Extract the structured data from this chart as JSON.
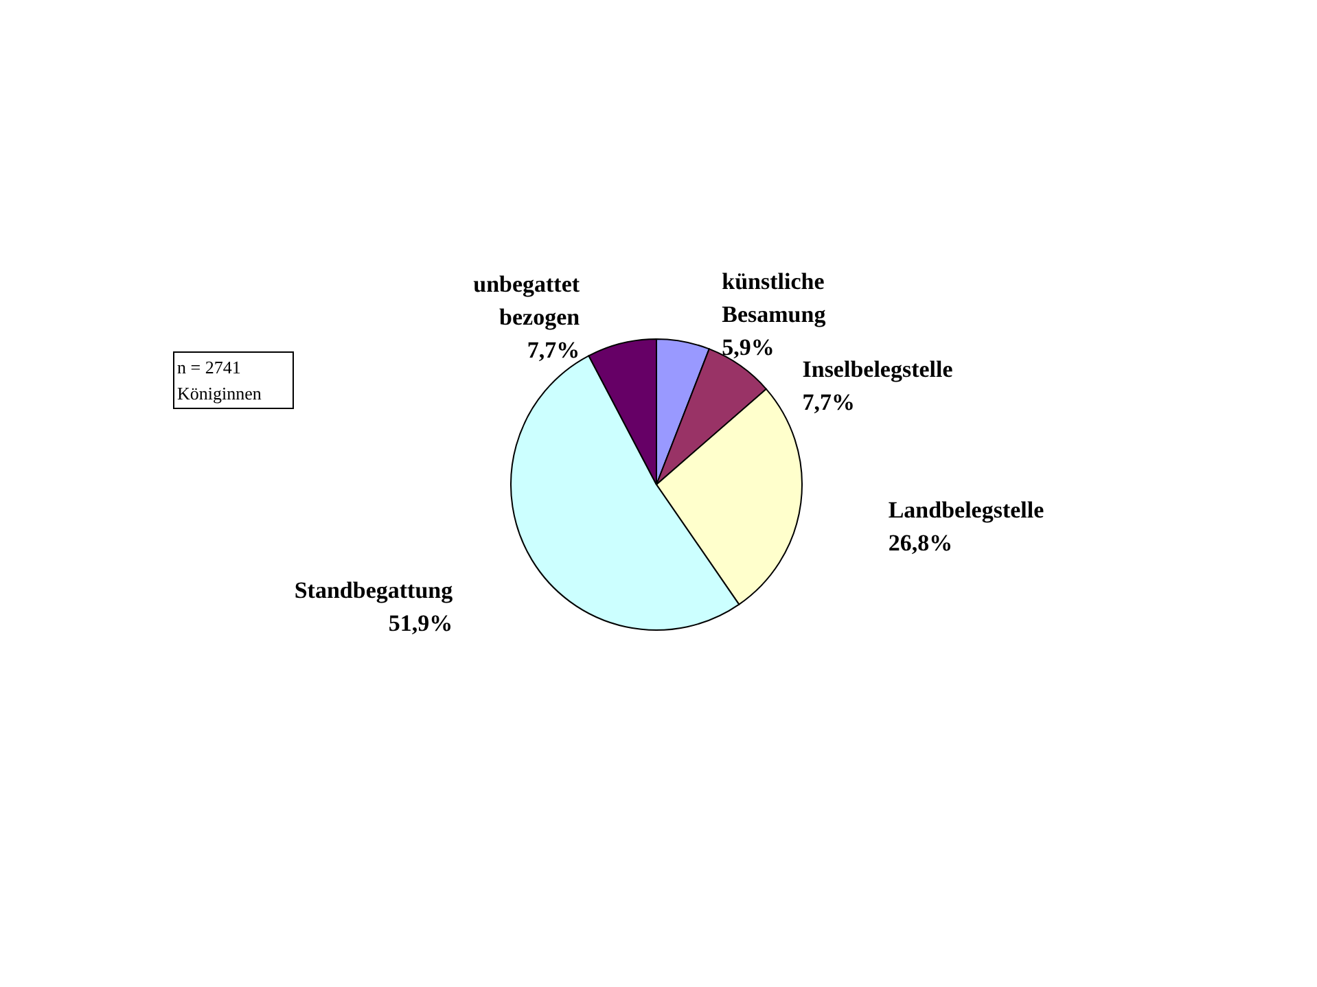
{
  "chart_data": {
    "type": "pie",
    "categories": [
      "künstliche Besamung",
      "Inselbelegstelle",
      "Landbelegstelle",
      "Standbegattung",
      "unbegattet bezogen"
    ],
    "values": [
      5.9,
      7.7,
      26.8,
      51.9,
      7.7
    ],
    "value_labels": [
      "5,9%",
      "7,7%",
      "26,8%",
      "51,9%",
      "7,7%"
    ],
    "colors": [
      "#9999ff",
      "#993366",
      "#ffffcc",
      "#ccffff",
      "#660066"
    ],
    "annotations": [
      "n = 2741 Königinnen"
    ]
  }
}
